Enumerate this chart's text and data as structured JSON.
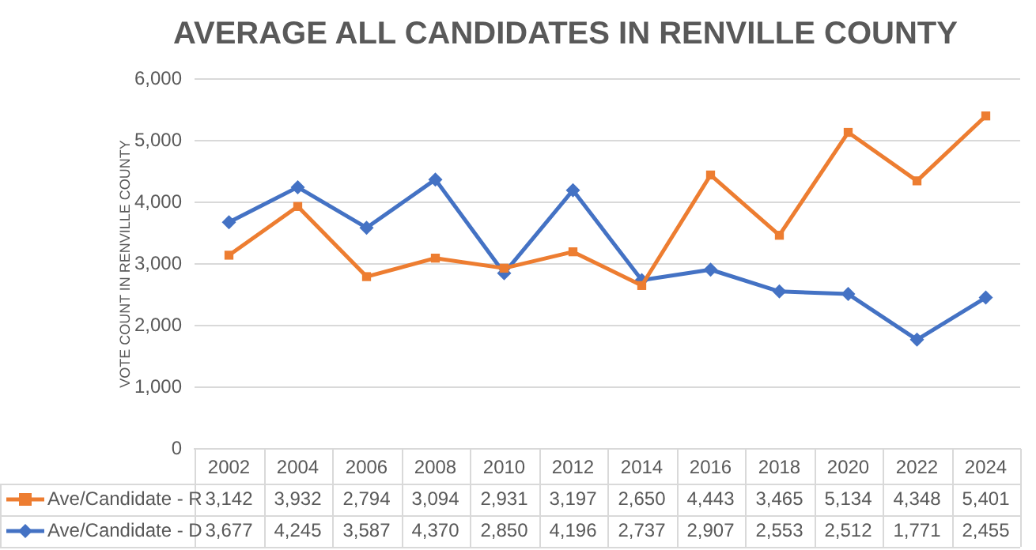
{
  "chart_data": {
    "type": "line",
    "title": "AVERAGE ALL CANDIDATES IN RENVILLE COUNTY",
    "ylabel": "VOTE COUNT IN RENVILLE COUNTY",
    "categories": [
      "2002",
      "2004",
      "2006",
      "2008",
      "2010",
      "2012",
      "2014",
      "2016",
      "2018",
      "2020",
      "2022",
      "2024"
    ],
    "series": [
      {
        "name": "Ave/Candidate - R",
        "color": "#ed7d31",
        "marker": "square",
        "values": [
          3142,
          3932,
          2794,
          3094,
          2931,
          3197,
          2650,
          4443,
          3465,
          5134,
          4348,
          5401
        ],
        "value_labels": [
          "3,142",
          "3,932",
          "2,794",
          "3,094",
          "2,931",
          "3,197",
          "2,650",
          "4,443",
          "3,465",
          "5,134",
          "4,348",
          "5,401"
        ]
      },
      {
        "name": "Ave/Candidate - D",
        "color": "#4472c4",
        "marker": "diamond",
        "values": [
          3677,
          4245,
          3587,
          4370,
          2850,
          4196,
          2737,
          2907,
          2553,
          2512,
          1771,
          2455
        ],
        "value_labels": [
          "3,677",
          "4,245",
          "3,587",
          "4,370",
          "2,850",
          "4,196",
          "2,737",
          "2,907",
          "2,553",
          "2,512",
          "1,771",
          "2,455"
        ]
      }
    ],
    "ylim": [
      0,
      6000
    ],
    "yticks": [
      {
        "value": 0,
        "label": "0"
      },
      {
        "value": 1000,
        "label": "1,000"
      },
      {
        "value": 2000,
        "label": "2,000"
      },
      {
        "value": 3000,
        "label": "3,000"
      },
      {
        "value": 4000,
        "label": "4,000"
      },
      {
        "value": 5000,
        "label": "5,000"
      },
      {
        "value": 6000,
        "label": "6,000"
      }
    ],
    "grid": "y",
    "legend": "bottom",
    "line_style": "solid"
  }
}
